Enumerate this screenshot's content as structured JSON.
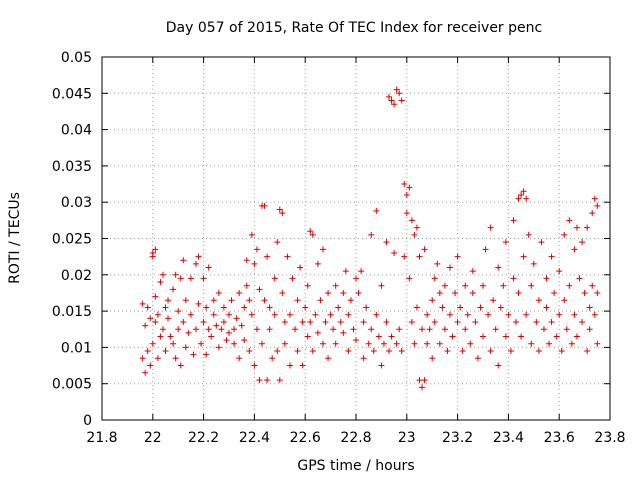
{
  "chart_data": {
    "type": "scatter",
    "title": "Day 057 of 2015, Rate Of TEC Index for receiver penc",
    "xlabel": "GPS time / hours",
    "ylabel": "ROTI / TECUs",
    "xlim": [
      21.8,
      23.8
    ],
    "ylim": [
      0,
      0.05
    ],
    "xticks": [
      21.8,
      22.0,
      22.2,
      22.4,
      22.6,
      22.8,
      23.0,
      23.2,
      23.4,
      23.6,
      23.8
    ],
    "xtick_labels": [
      "21.8",
      "22",
      "22.2",
      "22.4",
      "22.6",
      "22.8",
      "23",
      "23.2",
      "23.4",
      "23.6",
      "23.8"
    ],
    "yticks": [
      0,
      0.005,
      0.01,
      0.015,
      0.02,
      0.025,
      0.03,
      0.035,
      0.04,
      0.045,
      0.05
    ],
    "ytick_labels": [
      "0",
      "0.005",
      "0.01",
      "0.015",
      "0.02",
      "0.025",
      "0.03",
      "0.035",
      "0.04",
      "0.045",
      "0.05"
    ],
    "grid": true,
    "marker": "+",
    "color": "#e00000",
    "series": [
      {
        "name": "ROTI",
        "points": [
          [
            21.96,
            0.016
          ],
          [
            21.96,
            0.0085
          ],
          [
            21.97,
            0.0065
          ],
          [
            21.97,
            0.013
          ],
          [
            21.98,
            0.0155
          ],
          [
            21.98,
            0.0095
          ],
          [
            21.99,
            0.0075
          ],
          [
            21.99,
            0.014
          ],
          [
            22.0,
            0.0225
          ],
          [
            22.0,
            0.023
          ],
          [
            22.0,
            0.0105
          ],
          [
            22.01,
            0.0235
          ],
          [
            22.01,
            0.0135
          ],
          [
            22.01,
            0.017
          ],
          [
            22.02,
            0.0145
          ],
          [
            22.02,
            0.0085
          ],
          [
            22.03,
            0.019
          ],
          [
            22.03,
            0.0115
          ],
          [
            22.04,
            0.02
          ],
          [
            22.04,
            0.0125
          ],
          [
            22.05,
            0.0155
          ],
          [
            22.05,
            0.0095
          ],
          [
            22.06,
            0.0165
          ],
          [
            22.06,
            0.014
          ],
          [
            22.07,
            0.0115
          ],
          [
            22.08,
            0.018
          ],
          [
            22.08,
            0.0105
          ],
          [
            22.09,
            0.02
          ],
          [
            22.09,
            0.0085
          ],
          [
            22.1,
            0.015
          ],
          [
            22.1,
            0.0125
          ],
          [
            22.11,
            0.0195
          ],
          [
            22.11,
            0.0075
          ],
          [
            22.12,
            0.022
          ],
          [
            22.12,
            0.0135
          ],
          [
            22.13,
            0.0165
          ],
          [
            22.13,
            0.01
          ],
          [
            22.14,
            0.012
          ],
          [
            22.15,
            0.0195
          ],
          [
            22.15,
            0.0145
          ],
          [
            22.16,
            0.009
          ],
          [
            22.17,
            0.0215
          ],
          [
            22.17,
            0.0125
          ],
          [
            22.18,
            0.0225
          ],
          [
            22.18,
            0.016
          ],
          [
            22.19,
            0.0105
          ],
          [
            22.2,
            0.0195
          ],
          [
            22.2,
            0.0135
          ],
          [
            22.21,
            0.0155
          ],
          [
            22.21,
            0.009
          ],
          [
            22.22,
            0.021
          ],
          [
            22.22,
            0.0125
          ],
          [
            22.23,
            0.0115
          ],
          [
            22.24,
            0.0165
          ],
          [
            22.24,
            0.0145
          ],
          [
            22.25,
            0.013
          ],
          [
            22.26,
            0.01
          ],
          [
            22.26,
            0.0175
          ],
          [
            22.27,
            0.0125
          ],
          [
            22.28,
            0.0135
          ],
          [
            22.28,
            0.0155
          ],
          [
            22.29,
            0.011
          ],
          [
            22.3,
            0.0145
          ],
          [
            22.3,
            0.012
          ],
          [
            22.31,
            0.0165
          ],
          [
            22.32,
            0.0125
          ],
          [
            22.32,
            0.0105
          ],
          [
            22.33,
            0.014
          ],
          [
            22.34,
            0.0175
          ],
          [
            22.34,
            0.0085
          ],
          [
            22.35,
            0.013
          ],
          [
            22.36,
            0.0155
          ],
          [
            22.36,
            0.011
          ],
          [
            22.37,
            0.022
          ],
          [
            22.37,
            0.0185
          ],
          [
            22.38,
            0.0095
          ],
          [
            22.38,
            0.0165
          ],
          [
            22.39,
            0.0255
          ],
          [
            22.39,
            0.0145
          ],
          [
            22.4,
            0.0215
          ],
          [
            22.4,
            0.0075
          ],
          [
            22.41,
            0.0235
          ],
          [
            22.41,
            0.0125
          ],
          [
            22.42,
            0.0055
          ],
          [
            22.42,
            0.018
          ],
          [
            22.43,
            0.0295
          ],
          [
            22.43,
            0.0105
          ],
          [
            22.44,
            0.0295
          ],
          [
            22.44,
            0.0165
          ],
          [
            22.45,
            0.0225
          ],
          [
            22.45,
            0.0055
          ],
          [
            22.46,
            0.0155
          ],
          [
            22.46,
            0.0125
          ],
          [
            22.47,
            0.0085
          ],
          [
            22.48,
            0.0195
          ],
          [
            22.48,
            0.0145
          ],
          [
            22.49,
            0.0245
          ],
          [
            22.49,
            0.0095
          ],
          [
            22.5,
            0.029
          ],
          [
            22.5,
            0.0055
          ],
          [
            22.51,
            0.0285
          ],
          [
            22.51,
            0.0175
          ],
          [
            22.52,
            0.0135
          ],
          [
            22.52,
            0.0105
          ],
          [
            22.53,
            0.0225
          ],
          [
            22.54,
            0.0145
          ],
          [
            22.54,
            0.0075
          ],
          [
            22.55,
            0.0195
          ],
          [
            22.56,
            0.0125
          ],
          [
            22.57,
            0.0165
          ],
          [
            22.57,
            0.0095
          ],
          [
            22.58,
            0.021
          ],
          [
            22.59,
            0.0135
          ],
          [
            22.59,
            0.0075
          ],
          [
            22.6,
            0.0155
          ],
          [
            22.61,
            0.0115
          ],
          [
            22.61,
            0.0185
          ],
          [
            22.62,
            0.026
          ],
          [
            22.62,
            0.0135
          ],
          [
            22.63,
            0.0255
          ],
          [
            22.63,
            0.0095
          ],
          [
            22.64,
            0.0145
          ],
          [
            22.65,
            0.0215
          ],
          [
            22.65,
            0.012
          ],
          [
            22.66,
            0.0165
          ],
          [
            22.67,
            0.0105
          ],
          [
            22.67,
            0.0235
          ],
          [
            22.68,
            0.0135
          ],
          [
            22.69,
            0.0175
          ],
          [
            22.69,
            0.0085
          ],
          [
            22.7,
            0.0145
          ],
          [
            22.71,
            0.0125
          ],
          [
            22.72,
            0.0185
          ],
          [
            22.72,
            0.0105
          ],
          [
            22.73,
            0.0155
          ],
          [
            22.74,
            0.0135
          ],
          [
            22.75,
            0.012
          ],
          [
            22.75,
            0.0175
          ],
          [
            22.76,
            0.0205
          ],
          [
            22.77,
            0.0145
          ],
          [
            22.77,
            0.0095
          ],
          [
            22.78,
            0.0165
          ],
          [
            22.79,
            0.0125
          ],
          [
            22.8,
            0.0195
          ],
          [
            22.8,
            0.011
          ],
          [
            22.81,
            0.0175
          ],
          [
            22.82,
            0.0205
          ],
          [
            22.83,
            0.0135
          ],
          [
            22.83,
            0.0085
          ],
          [
            22.84,
            0.0155
          ],
          [
            22.85,
            0.0105
          ],
          [
            22.86,
            0.0255
          ],
          [
            22.86,
            0.0125
          ],
          [
            22.87,
            0.0095
          ],
          [
            22.88,
            0.0288
          ],
          [
            22.88,
            0.0145
          ],
          [
            22.89,
            0.0115
          ],
          [
            22.9,
            0.0185
          ],
          [
            22.9,
            0.0075
          ],
          [
            22.91,
            0.0105
          ],
          [
            22.92,
            0.0245
          ],
          [
            22.92,
            0.0135
          ],
          [
            22.93,
            0.0445
          ],
          [
            22.93,
            0.0095
          ],
          [
            22.94,
            0.044
          ],
          [
            22.94,
            0.0115
          ],
          [
            22.95,
            0.0435
          ],
          [
            22.95,
            0.023
          ],
          [
            22.96,
            0.0455
          ],
          [
            22.96,
            0.0105
          ],
          [
            22.97,
            0.045
          ],
          [
            22.97,
            0.0125
          ],
          [
            22.98,
            0.044
          ],
          [
            22.98,
            0.0095
          ],
          [
            22.99,
            0.0325
          ],
          [
            22.99,
            0.0225
          ],
          [
            23.0,
            0.031
          ],
          [
            23.0,
            0.0285
          ],
          [
            23.01,
            0.032
          ],
          [
            23.01,
            0.0195
          ],
          [
            23.02,
            0.0275
          ],
          [
            23.02,
            0.0135
          ],
          [
            23.03,
            0.0255
          ],
          [
            23.03,
            0.0105
          ],
          [
            23.04,
            0.0265
          ],
          [
            23.04,
            0.0155
          ],
          [
            23.05,
            0.0225
          ],
          [
            23.05,
            0.0055
          ],
          [
            23.06,
            0.0045
          ],
          [
            23.06,
            0.0125
          ],
          [
            23.07,
            0.0055
          ],
          [
            23.07,
            0.0235
          ],
          [
            23.08,
            0.0105
          ],
          [
            23.08,
            0.0145
          ],
          [
            23.09,
            0.0125
          ],
          [
            23.1,
            0.0165
          ],
          [
            23.1,
            0.0085
          ],
          [
            23.11,
            0.0195
          ],
          [
            23.11,
            0.0135
          ],
          [
            23.12,
            0.0215
          ],
          [
            23.13,
            0.0105
          ],
          [
            23.13,
            0.0175
          ],
          [
            23.14,
            0.0155
          ],
          [
            23.15,
            0.0125
          ],
          [
            23.15,
            0.0185
          ],
          [
            23.16,
            0.0095
          ],
          [
            23.17,
            0.021
          ],
          [
            23.17,
            0.0145
          ],
          [
            23.18,
            0.0115
          ],
          [
            23.19,
            0.0175
          ],
          [
            23.2,
            0.0135
          ],
          [
            23.2,
            0.0225
          ],
          [
            23.21,
            0.0155
          ],
          [
            23.22,
            0.0095
          ],
          [
            23.23,
            0.0185
          ],
          [
            23.23,
            0.0125
          ],
          [
            23.24,
            0.0145
          ],
          [
            23.25,
            0.0105
          ],
          [
            23.26,
            0.0175
          ],
          [
            23.26,
            0.0205
          ],
          [
            23.27,
            0.0135
          ],
          [
            23.28,
            0.0085
          ],
          [
            23.29,
            0.0155
          ],
          [
            23.3,
            0.0185
          ],
          [
            23.3,
            0.0115
          ],
          [
            23.31,
            0.0235
          ],
          [
            23.32,
            0.0145
          ],
          [
            23.33,
            0.0095
          ],
          [
            23.33,
            0.0265
          ],
          [
            23.34,
            0.0165
          ],
          [
            23.35,
            0.0125
          ],
          [
            23.36,
            0.021
          ],
          [
            23.36,
            0.0075
          ],
          [
            23.37,
            0.0155
          ],
          [
            23.38,
            0.0185
          ],
          [
            23.39,
            0.0115
          ],
          [
            23.39,
            0.0245
          ],
          [
            23.4,
            0.0145
          ],
          [
            23.41,
            0.0095
          ],
          [
            23.42,
            0.0195
          ],
          [
            23.42,
            0.0275
          ],
          [
            23.43,
            0.0135
          ],
          [
            23.44,
            0.0305
          ],
          [
            23.44,
            0.0175
          ],
          [
            23.45,
            0.031
          ],
          [
            23.45,
            0.0115
          ],
          [
            23.46,
            0.0315
          ],
          [
            23.46,
            0.0225
          ],
          [
            23.47,
            0.0305
          ],
          [
            23.47,
            0.0145
          ],
          [
            23.48,
            0.0255
          ],
          [
            23.49,
            0.0185
          ],
          [
            23.49,
            0.0105
          ],
          [
            23.5,
            0.0215
          ],
          [
            23.51,
            0.0135
          ],
          [
            23.52,
            0.0165
          ],
          [
            23.52,
            0.0095
          ],
          [
            23.53,
            0.0245
          ],
          [
            23.54,
            0.0125
          ],
          [
            23.55,
            0.0195
          ],
          [
            23.55,
            0.0155
          ],
          [
            23.56,
            0.0105
          ],
          [
            23.57,
            0.0225
          ],
          [
            23.57,
            0.0135
          ],
          [
            23.58,
            0.0175
          ],
          [
            23.59,
            0.0115
          ],
          [
            23.6,
            0.0205
          ],
          [
            23.6,
            0.0145
          ],
          [
            23.61,
            0.0095
          ],
          [
            23.62,
            0.0255
          ],
          [
            23.62,
            0.0165
          ],
          [
            23.63,
            0.0125
          ],
          [
            23.64,
            0.0275
          ],
          [
            23.64,
            0.0185
          ],
          [
            23.65,
            0.0105
          ],
          [
            23.66,
            0.0235
          ],
          [
            23.66,
            0.0145
          ],
          [
            23.67,
            0.0265
          ],
          [
            23.67,
            0.0115
          ],
          [
            23.68,
            0.0195
          ],
          [
            23.69,
            0.0135
          ],
          [
            23.69,
            0.0245
          ],
          [
            23.7,
            0.0175
          ],
          [
            23.71,
            0.0095
          ],
          [
            23.71,
            0.0265
          ],
          [
            23.72,
            0.0155
          ],
          [
            23.72,
            0.0125
          ],
          [
            23.73,
            0.0285
          ],
          [
            23.73,
            0.0185
          ],
          [
            23.74,
            0.0305
          ],
          [
            23.74,
            0.0145
          ],
          [
            23.75,
            0.0295
          ],
          [
            23.75,
            0.0105
          ],
          [
            23.75,
            0.0175
          ]
        ]
      }
    ]
  }
}
